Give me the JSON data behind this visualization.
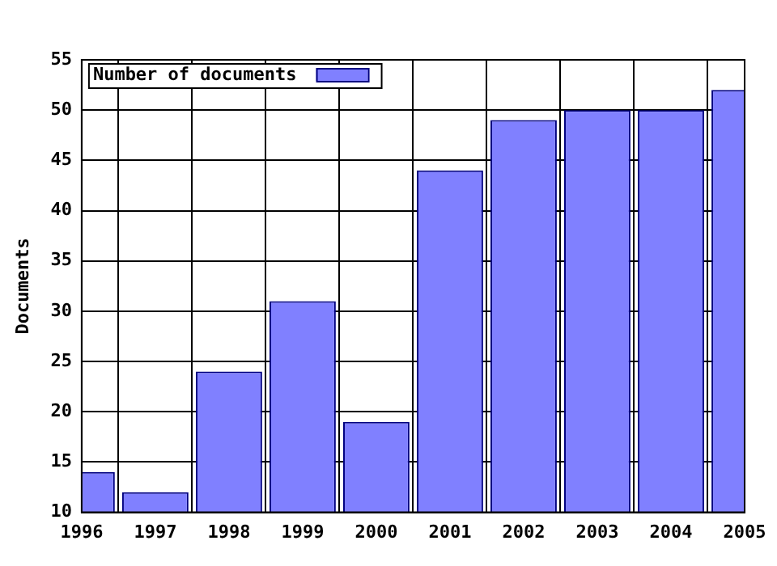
{
  "chart_data": {
    "type": "bar",
    "ylabel": "Documents",
    "x": [
      1996,
      1997,
      1998,
      1999,
      2000,
      2001,
      2002,
      2003,
      2004,
      2005
    ],
    "series": [
      {
        "name": "Number of documents",
        "color": "#8080ff",
        "values": [
          14,
          12,
          24,
          31,
          19,
          44,
          49,
          50,
          50,
          52
        ]
      }
    ],
    "xlim": [
      1996,
      2005
    ],
    "xticks": [
      1996,
      1997,
      1998,
      1999,
      2000,
      2001,
      2002,
      2003,
      2004,
      2005
    ],
    "ylim": [
      10,
      55
    ],
    "yticks": [
      10,
      15,
      20,
      25,
      30,
      35,
      40,
      45,
      50,
      55
    ],
    "grid": true,
    "legend": "top left"
  }
}
